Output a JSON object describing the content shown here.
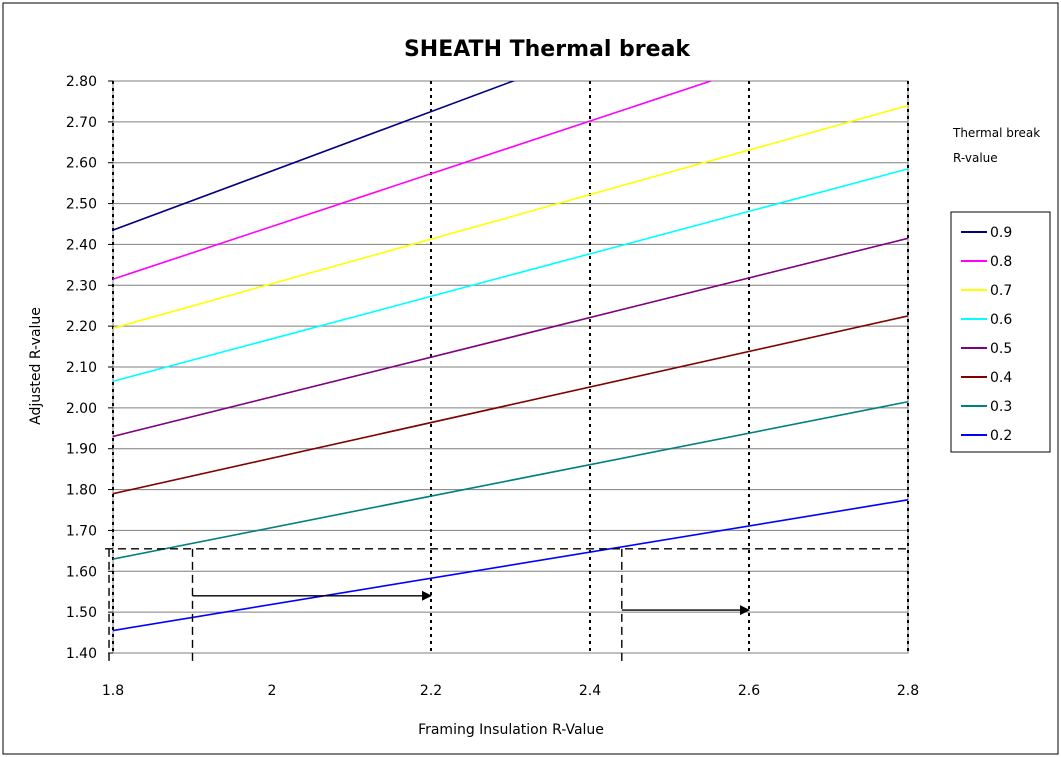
{
  "chart_data": {
    "type": "line",
    "title": "SHEATH Thermal break",
    "xlabel": "Framing Insulation R-Value",
    "ylabel": "Adjusted R-value",
    "xlim": [
      1.8,
      2.8
    ],
    "ylim": [
      1.4,
      2.8
    ],
    "x_ticks": [
      1.8,
      2,
      2.2,
      2.4,
      2.6,
      2.8
    ],
    "x_tick_labels": [
      "1.8",
      "2",
      "2.2",
      "2.4",
      "2.6",
      "2.8"
    ],
    "y_ticks": [
      1.4,
      1.5,
      1.6,
      1.7,
      1.8,
      1.9,
      2.0,
      2.1,
      2.2,
      2.3,
      2.4,
      2.5,
      2.6,
      2.7,
      2.8
    ],
    "y_tick_labels": [
      "1.40",
      "1.50",
      "1.60",
      "1.70",
      "1.80",
      "1.90",
      "2.00",
      "2.10",
      "2.20",
      "2.30",
      "2.40",
      "2.50",
      "2.60",
      "2.70",
      "2.80"
    ],
    "legend_title_line1": "Thermal break",
    "legend_title_line2": "R-value",
    "legend_position": "right",
    "series": [
      {
        "name": "0.9",
        "color": "#000080",
        "x": [
          1.8,
          2.8
        ],
        "y": [
          2.435,
          3.16
        ]
      },
      {
        "name": "0.8",
        "color": "#ff00ff",
        "x": [
          1.8,
          2.8
        ],
        "y": [
          2.315,
          2.96
        ]
      },
      {
        "name": "0.7",
        "color": "#ffff00",
        "x": [
          1.8,
          2.8
        ],
        "y": [
          2.195,
          2.74
        ]
      },
      {
        "name": "0.6",
        "color": "#00ffff",
        "x": [
          1.8,
          2.8
        ],
        "y": [
          2.065,
          2.585
        ]
      },
      {
        "name": "0.5",
        "color": "#800080",
        "x": [
          1.8,
          2.8
        ],
        "y": [
          1.93,
          2.415
        ]
      },
      {
        "name": "0.4",
        "color": "#800000",
        "x": [
          1.8,
          2.8
        ],
        "y": [
          1.79,
          2.225
        ]
      },
      {
        "name": "0.3",
        "color": "#008080",
        "x": [
          1.8,
          2.8
        ],
        "y": [
          1.63,
          2.015
        ]
      },
      {
        "name": "0.2",
        "color": "#0000ff",
        "x": [
          1.8,
          2.8
        ],
        "y": [
          1.455,
          1.775
        ]
      }
    ],
    "vertical_dotted_lines": [
      1.8,
      2.2,
      2.4,
      2.6,
      2.8
    ],
    "dashed_guides": {
      "horizontal_y": 1.655,
      "verticals": [
        {
          "x": 1.9,
          "y_top": 1.655
        },
        {
          "x": 2.44,
          "y_top": 1.655
        },
        {
          "x": 1.795,
          "y_top": 1.655
        }
      ]
    },
    "arrows": [
      {
        "x_from": 1.9,
        "x_to": 2.2,
        "y": 1.54
      },
      {
        "x_from": 2.44,
        "x_to": 2.6,
        "y": 1.505
      }
    ]
  }
}
